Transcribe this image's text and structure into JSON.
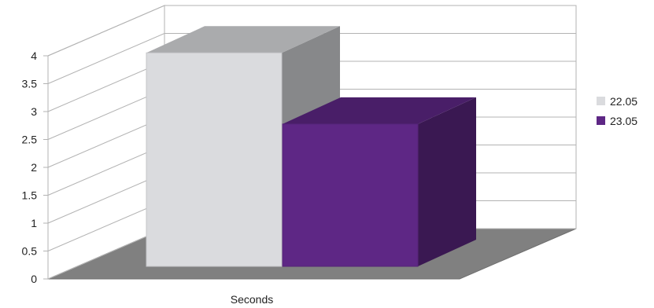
{
  "chart_data": {
    "type": "bar",
    "style": "3d",
    "categories": [
      "Seconds"
    ],
    "series": [
      {
        "name": "22.05",
        "values": [
          4.05
        ],
        "color": "#dadbde"
      },
      {
        "name": "23.05",
        "values": [
          2.7
        ],
        "color": "#5e2785"
      }
    ],
    "title": "",
    "xlabel": "",
    "ylabel": "",
    "ylim": [
      0,
      4
    ],
    "yticks": [
      "0",
      "0.5",
      "1",
      "1.5",
      "2",
      "2.5",
      "3",
      "3.5",
      "4"
    ],
    "grid": true,
    "legend_position": "right"
  },
  "colors": {
    "floor": "#808080",
    "grid": "#b3b3b3"
  }
}
